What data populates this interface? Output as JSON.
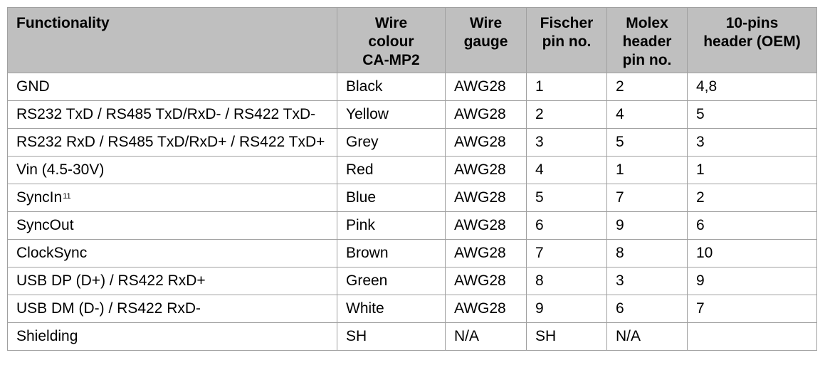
{
  "table": {
    "headers": [
      [
        "Functionality"
      ],
      [
        "Wire",
        "colour",
        "CA-MP2"
      ],
      [
        "Wire",
        "gauge"
      ],
      [
        "Fischer",
        "pin no."
      ],
      [
        "Molex",
        "header",
        "pin no."
      ],
      [
        "10-pins",
        "header (OEM)"
      ]
    ],
    "rows": [
      {
        "func": "GND",
        "colour": "Black",
        "gauge": "AWG28",
        "fischer": "1",
        "molex": "2",
        "oem": "4,8"
      },
      {
        "func": "RS232 TxD / RS485 TxD/RxD- / RS422 TxD-",
        "colour": "Yellow",
        "gauge": "AWG28",
        "fischer": "2",
        "molex": "4",
        "oem": "5"
      },
      {
        "func": "RS232 RxD / RS485 TxD/RxD+ / RS422 TxD+",
        "colour": "Grey",
        "gauge": "AWG28",
        "fischer": "3",
        "molex": "5",
        "oem": "3"
      },
      {
        "func": "Vin (4.5-30V)",
        "colour": "Red",
        "gauge": "AWG28",
        "fischer": "4",
        "molex": "1",
        "oem": "1"
      },
      {
        "func": "SyncIn",
        "func_sup": "11",
        "colour": "Blue",
        "gauge": "AWG28",
        "fischer": "5",
        "molex": "7",
        "oem": "2"
      },
      {
        "func": "SyncOut",
        "colour": "Pink",
        "gauge": "AWG28",
        "fischer": "6",
        "molex": "9",
        "oem": "6"
      },
      {
        "func": "ClockSync",
        "colour": "Brown",
        "gauge": "AWG28",
        "fischer": "7",
        "molex": "8",
        "oem": "10"
      },
      {
        "func": "USB DP (D+) / RS422 RxD+",
        "colour": "Green",
        "gauge": "AWG28",
        "fischer": "8",
        "molex": "3",
        "oem": "9"
      },
      {
        "func": "USB DM (D-) / RS422 RxD-",
        "colour": "White",
        "gauge": "AWG28",
        "fischer": "9",
        "molex": "6",
        "oem": "7"
      },
      {
        "func": "Shielding",
        "colour": "SH",
        "gauge": "N/A",
        "fischer": "SH",
        "molex": "N/A",
        "oem": ""
      }
    ]
  }
}
